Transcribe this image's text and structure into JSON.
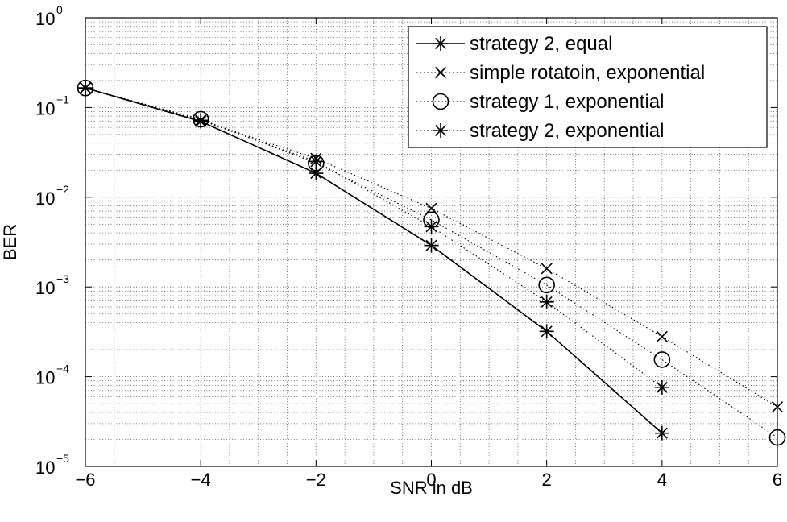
{
  "chart_data": {
    "type": "line",
    "xlabel": "SNR in dB",
    "ylabel": "BER",
    "xlim": [
      -6,
      6
    ],
    "ylim": [
      1e-05,
      1
    ],
    "yscale": "log",
    "grid": true,
    "legend_position": "top-right",
    "x_ticks": [
      "−6",
      "−4",
      "−2",
      "0",
      "2",
      "4",
      "6"
    ],
    "y_ticks": [
      {
        "base": "10",
        "exp": "0"
      },
      {
        "base": "10",
        "exp": "−1"
      },
      {
        "base": "10",
        "exp": "−2"
      },
      {
        "base": "10",
        "exp": "−3"
      },
      {
        "base": "10",
        "exp": "−4"
      },
      {
        "base": "10",
        "exp": "−5"
      }
    ],
    "series": [
      {
        "name": "strategy 2, equal",
        "line": "solid",
        "marker": "star",
        "x": [
          -6,
          -4,
          -2,
          0,
          2,
          4
        ],
        "y": [
          0.165,
          0.07,
          0.0185,
          0.0029,
          0.00032,
          2.35e-05
        ]
      },
      {
        "name": "simple rotatoin, exponential",
        "line": "dotted",
        "marker": "x",
        "x": [
          -6,
          -4,
          -2,
          0,
          2,
          4,
          6
        ],
        "y": [
          0.165,
          0.072,
          0.027,
          0.0075,
          0.0016,
          0.00028,
          4.6e-05
        ]
      },
      {
        "name": "strategy 1, exponential",
        "line": "dotted",
        "marker": "circle",
        "x": [
          -6,
          -4,
          -2,
          0,
          2,
          4,
          6
        ],
        "y": [
          0.165,
          0.074,
          0.024,
          0.0056,
          0.00105,
          0.000155,
          2.1e-05
        ]
      },
      {
        "name": "strategy 2, exponential",
        "line": "dotted",
        "marker": "star",
        "x": [
          -6,
          -4,
          -2,
          0,
          2,
          4
        ],
        "y": [
          0.165,
          0.072,
          0.025,
          0.0047,
          0.00068,
          7.6e-05
        ]
      }
    ]
  }
}
